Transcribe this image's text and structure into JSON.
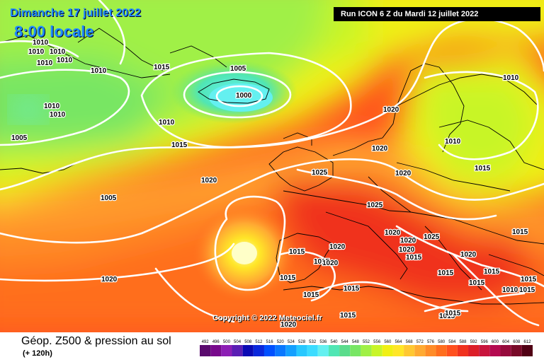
{
  "header": {
    "date": "Dimanche 17 juillet 2022",
    "time": "8:00 locale",
    "run": "Run ICON 6 Z du Mardi 12 juillet 2022"
  },
  "copyright": "Copyright © 2022 Meteociel.fr",
  "footer": {
    "title": "Géop. Z500 & pression au sol",
    "subtitle": "(+ 120h)"
  },
  "scale": {
    "values": [
      "492",
      "496",
      "500",
      "504",
      "508",
      "512",
      "516",
      "520",
      "524",
      "528",
      "532",
      "536",
      "540",
      "544",
      "548",
      "552",
      "556",
      "560",
      "564",
      "568",
      "572",
      "576",
      "580",
      "584",
      "588",
      "592",
      "596",
      "600",
      "604",
      "608",
      "612"
    ],
    "colors": [
      "#5a0a6e",
      "#780a8c",
      "#8c1eb4",
      "#5a1eb4",
      "#0a0ab4",
      "#0a28dc",
      "#0050ff",
      "#0a78ff",
      "#14a0ff",
      "#28c8ff",
      "#3cdcff",
      "#64f0f0",
      "#50e6b4",
      "#5adc8c",
      "#78e664",
      "#a0f046",
      "#c8f528",
      "#f0f014",
      "#ffe628",
      "#ffc832",
      "#ffaa32",
      "#ff8c28",
      "#ff6e1e",
      "#ff501e",
      "#f0321e",
      "#dc1e28",
      "#c8143c",
      "#b40a50",
      "#960a3c",
      "#780a28",
      "#500014"
    ]
  },
  "isobar_labels": [
    "1010",
    "1010",
    "1010",
    "1010",
    "1010",
    "1010",
    "1005",
    "1000",
    "1010",
    "1015",
    "1010",
    "1010",
    "1005",
    "1010",
    "1015",
    "1020",
    "1005",
    "1020",
    "1020",
    "1025",
    "1020",
    "1010",
    "1015",
    "1025",
    "1015",
    "1020",
    "1020",
    "1020",
    "1020",
    "1025",
    "1020",
    "1015",
    "1015",
    "1015",
    "1020",
    "1015",
    "1015",
    "1015",
    "1015",
    "1015",
    "1015",
    "1015",
    "1020",
    "1015",
    "1010",
    "1015",
    "1015",
    "1020",
    "1015"
  ]
}
